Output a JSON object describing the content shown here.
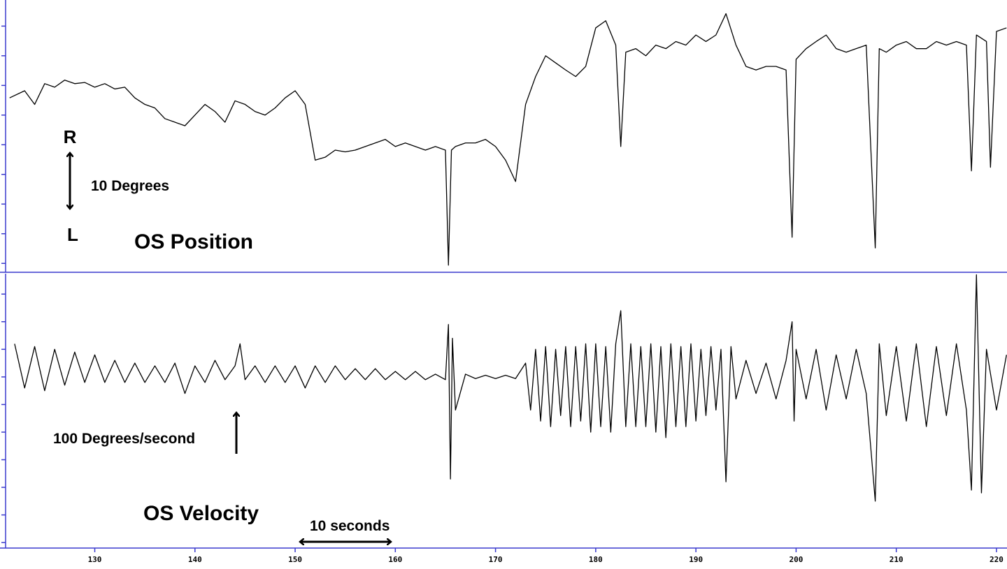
{
  "chart_data": [
    {
      "type": "line",
      "annotations": [
        "R",
        "L",
        "10 Degrees",
        "OS Position"
      ],
      "xlim": [
        121.1,
        221.05
      ],
      "ylim": [
        -16.5,
        29.4
      ],
      "yticks": [
        {
          "value": -15,
          "label": null
        },
        {
          "value": -10,
          "label": null
        },
        {
          "value": -5,
          "label": null
        },
        {
          "value": 0,
          "label": null
        },
        {
          "value": 5,
          "label": null
        },
        {
          "value": 10,
          "label": null
        },
        {
          "value": 15,
          "label": null
        },
        {
          "value": 20,
          "label": null
        },
        {
          "value": 25,
          "label": null
        }
      ],
      "axis_color": "#3a3acd",
      "series": [
        {
          "color": "#000000",
          "x": [
            121.5,
            123,
            124,
            125,
            126,
            127,
            128,
            129,
            130,
            131,
            132,
            133,
            134,
            135,
            136,
            137,
            138,
            139,
            140,
            141,
            142,
            143,
            144,
            145,
            146,
            147,
            148,
            149,
            150,
            151,
            152,
            153,
            154,
            155,
            156,
            157,
            158,
            159,
            160,
            161,
            162,
            163,
            164,
            165,
            165.3,
            165.6,
            166,
            167,
            168,
            169,
            170,
            171,
            172,
            173,
            174,
            175,
            176,
            177,
            178,
            179,
            180,
            181,
            182,
            182.5,
            183,
            184,
            185,
            186,
            187,
            188,
            189,
            190,
            191,
            192,
            193,
            194,
            195,
            196,
            197,
            198,
            199,
            199.6,
            200,
            201,
            202,
            203,
            204,
            205,
            206,
            207,
            207.9,
            208.3,
            209,
            210,
            211,
            212,
            213,
            214,
            215,
            216,
            217,
            217.5,
            218,
            219,
            219.4,
            220,
            221
          ],
          "values": [
            12.9,
            14.1,
            11.8,
            15.3,
            14.7,
            15.9,
            15.3,
            15.5,
            14.7,
            15.3,
            14.4,
            14.7,
            12.9,
            11.8,
            11.2,
            9.4,
            8.8,
            8.2,
            10.0,
            11.8,
            10.6,
            8.8,
            12.4,
            11.8,
            10.6,
            10.0,
            11.2,
            12.9,
            14.1,
            11.8,
            2.4,
            2.9,
            4.1,
            3.8,
            4.1,
            4.7,
            5.3,
            5.9,
            4.7,
            5.3,
            4.7,
            4.1,
            4.7,
            4.1,
            -15.3,
            4.1,
            4.7,
            5.3,
            5.3,
            5.9,
            4.7,
            2.4,
            -1.2,
            11.8,
            16.5,
            20.0,
            18.8,
            17.6,
            16.5,
            18.2,
            24.7,
            25.9,
            21.8,
            4.7,
            20.6,
            21.2,
            20.0,
            21.8,
            21.2,
            22.4,
            21.8,
            23.5,
            22.4,
            23.5,
            27.1,
            21.8,
            18.2,
            17.6,
            18.2,
            18.2,
            17.6,
            -10.6,
            19.4,
            21.2,
            22.4,
            23.5,
            21.2,
            20.6,
            21.2,
            21.8,
            -12.4,
            21.2,
            20.6,
            21.8,
            22.4,
            21.2,
            21.2,
            22.4,
            21.8,
            22.4,
            21.8,
            0.6,
            23.5,
            22.4,
            1.2,
            24.1,
            24.7
          ]
        }
      ]
    },
    {
      "type": "line",
      "annotations": [
        "100 Degrees/second",
        "OS Velocity",
        "10 seconds"
      ],
      "xlim": [
        121.1,
        221.05
      ],
      "xticks": [
        130,
        140,
        150,
        160,
        170,
        180,
        190,
        200,
        210,
        220
      ],
      "ylim": [
        -310,
        187
      ],
      "yticks": [
        {
          "value": -300,
          "label": null
        },
        {
          "value": -250,
          "label": null
        },
        {
          "value": -200,
          "label": null
        },
        {
          "value": -150,
          "label": null
        },
        {
          "value": -100,
          "label": null
        },
        {
          "value": -50,
          "label": null
        },
        {
          "value": 0,
          "label": null
        },
        {
          "value": 50,
          "label": null
        },
        {
          "value": 100,
          "label": null
        },
        {
          "value": 150,
          "label": null
        }
      ],
      "axis_color": "#3a3acd",
      "series": [
        {
          "color": "#000000",
          "x": [
            122,
            123,
            124,
            125,
            126,
            127,
            128,
            129,
            130,
            131,
            132,
            133,
            134,
            135,
            136,
            137,
            138,
            139,
            140,
            141,
            142,
            143,
            144,
            144.5,
            145,
            146,
            147,
            148,
            149,
            150,
            151,
            152,
            153,
            154,
            155,
            156,
            157,
            158,
            159,
            160,
            161,
            162,
            163,
            164,
            165,
            165.3,
            165.5,
            165.7,
            166,
            167,
            168,
            169,
            170,
            171,
            172,
            173,
            173.5,
            174,
            174.5,
            175,
            175.5,
            176,
            176.5,
            177,
            177.5,
            178,
            178.5,
            179,
            179.5,
            180,
            180.5,
            181,
            181.5,
            182,
            182.5,
            183,
            183.5,
            184,
            184.5,
            185,
            185.5,
            186,
            186.5,
            187,
            187.5,
            188,
            188.5,
            189,
            189.5,
            190,
            190.5,
            191,
            191.5,
            192,
            192.5,
            193,
            193.5,
            194,
            195,
            196,
            197,
            198,
            199,
            199.6,
            199.8,
            200,
            201,
            202,
            203,
            204,
            205,
            206,
            207,
            207.9,
            208.3,
            209,
            210,
            211,
            212,
            213,
            214,
            215,
            216,
            217,
            217.5,
            218,
            218.5,
            219,
            220,
            221
          ],
          "values": [
            60,
            -20,
            55,
            -25,
            50,
            -15,
            45,
            -10,
            40,
            -10,
            30,
            -10,
            25,
            -10,
            20,
            -10,
            25,
            -30,
            20,
            -10,
            30,
            -5,
            20,
            60,
            -5,
            20,
            -10,
            20,
            -10,
            20,
            -20,
            20,
            -10,
            20,
            -5,
            15,
            -5,
            15,
            -5,
            10,
            -5,
            10,
            -5,
            5,
            -5,
            95,
            -185,
            70,
            -60,
            5,
            -3,
            3,
            -3,
            3,
            -3,
            25,
            -60,
            50,
            -80,
            55,
            -90,
            50,
            -70,
            55,
            -90,
            55,
            -80,
            60,
            -100,
            60,
            -90,
            55,
            -100,
            60,
            120,
            -90,
            60,
            -90,
            55,
            -90,
            60,
            -100,
            55,
            -110,
            60,
            -90,
            55,
            -90,
            60,
            -80,
            50,
            -70,
            55,
            -60,
            50,
            -190,
            55,
            -40,
            30,
            -30,
            25,
            -40,
            30,
            100,
            -80,
            50,
            -40,
            50,
            -60,
            40,
            -40,
            50,
            -30,
            -225,
            60,
            -70,
            55,
            -80,
            60,
            -90,
            55,
            -70,
            60,
            -60,
            -205,
            185,
            -210,
            50,
            -60,
            40
          ]
        }
      ]
    }
  ]
}
